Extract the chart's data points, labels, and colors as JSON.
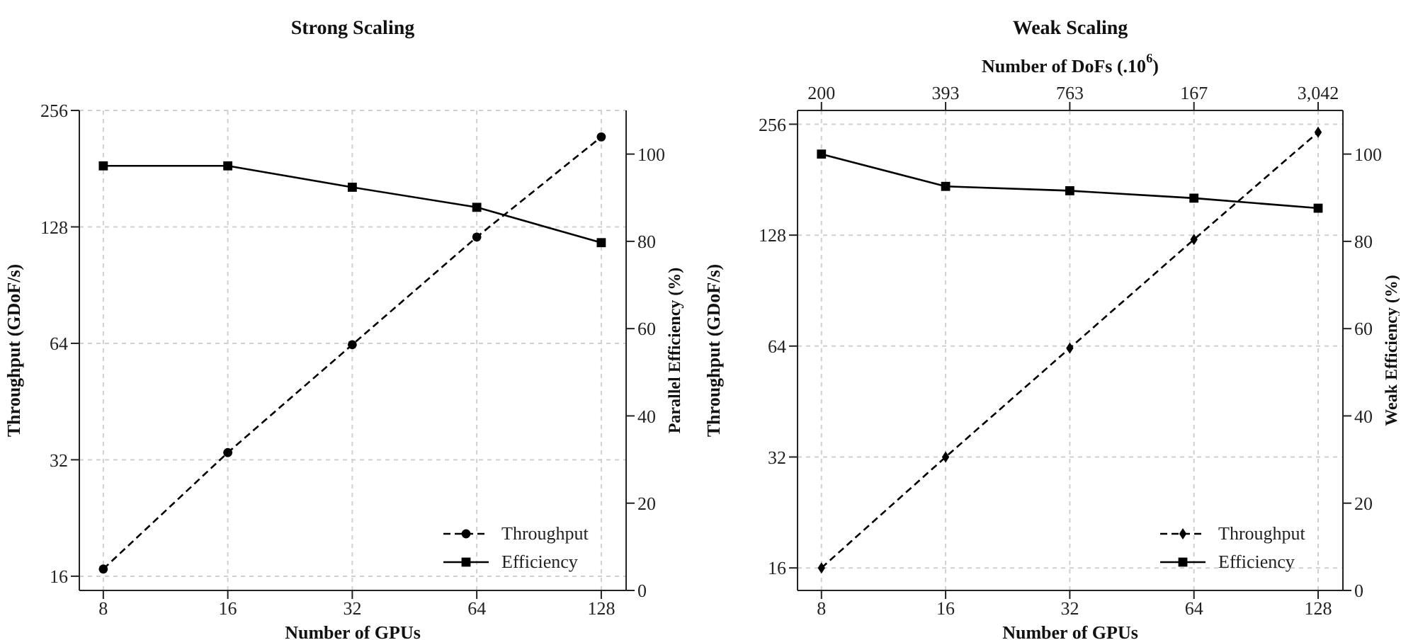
{
  "chart_data": [
    {
      "type": "line",
      "title": "Strong Scaling",
      "xlabel": "Number of GPUs",
      "ylabel": "Throughput (GDoF/s)",
      "y2label": "Parallel Efficiency (%)",
      "x": [
        8,
        16,
        32,
        64,
        128
      ],
      "log": "xy",
      "xlim": [
        7,
        147
      ],
      "xticks": [
        8,
        16,
        32,
        64,
        128
      ],
      "ylim": [
        14.7,
        256
      ],
      "yticks": [
        16,
        32,
        64,
        128,
        256
      ],
      "y2lim": [
        0,
        110
      ],
      "y2ticks": [
        0,
        20,
        40,
        60,
        80,
        100
      ],
      "grid": true,
      "legend": "bottom right",
      "series": [
        {
          "name": "Throughput",
          "color": "#000000",
          "marker": "circle",
          "line_style": "dashed",
          "values": [
            16.7,
            33.4,
            63.5,
            120.5,
            218.7
          ]
        },
        {
          "name": "Efficiency",
          "color": "#000000",
          "marker": "square",
          "line_style": "solid",
          "axis": "y2",
          "values": [
            97.3,
            97.3,
            92.4,
            87.8,
            79.7
          ]
        }
      ]
    },
    {
      "type": "line",
      "title": "Weak Scaling",
      "xlabel": "Number of GPUs",
      "ylabel": "Throughput (GDoF/s)",
      "y2label": "Weak Efficiency (%)",
      "x2label": "Number of DoFs (.10$^{6}$)",
      "x": [
        8,
        16,
        32,
        64,
        128
      ],
      "log": "xy",
      "xlim": [
        7,
        147
      ],
      "xticks": [
        8,
        16,
        32,
        64,
        128
      ],
      "annotations": [
        "200",
        "393",
        "763",
        "167",
        "3,042"
      ],
      "ylim": [
        13.9,
        279
      ],
      "yticks": [
        16,
        32,
        64,
        128,
        256
      ],
      "y2lim": [
        0,
        110
      ],
      "y2ticks": [
        0,
        20,
        40,
        60,
        80,
        100
      ],
      "grid": true,
      "legend": "bottom right",
      "series": [
        {
          "name": "Throughput",
          "color": "#000000",
          "marker": "diamond",
          "line_style": "dashed",
          "values": [
            16,
            32,
            63.2,
            124.6,
            243.6
          ]
        },
        {
          "name": "Efficiency",
          "color": "#000000",
          "marker": "square",
          "line_style": "solid",
          "axis": "y2",
          "values": [
            100,
            92.6,
            91.6,
            89.9,
            87.6
          ]
        }
      ]
    }
  ]
}
